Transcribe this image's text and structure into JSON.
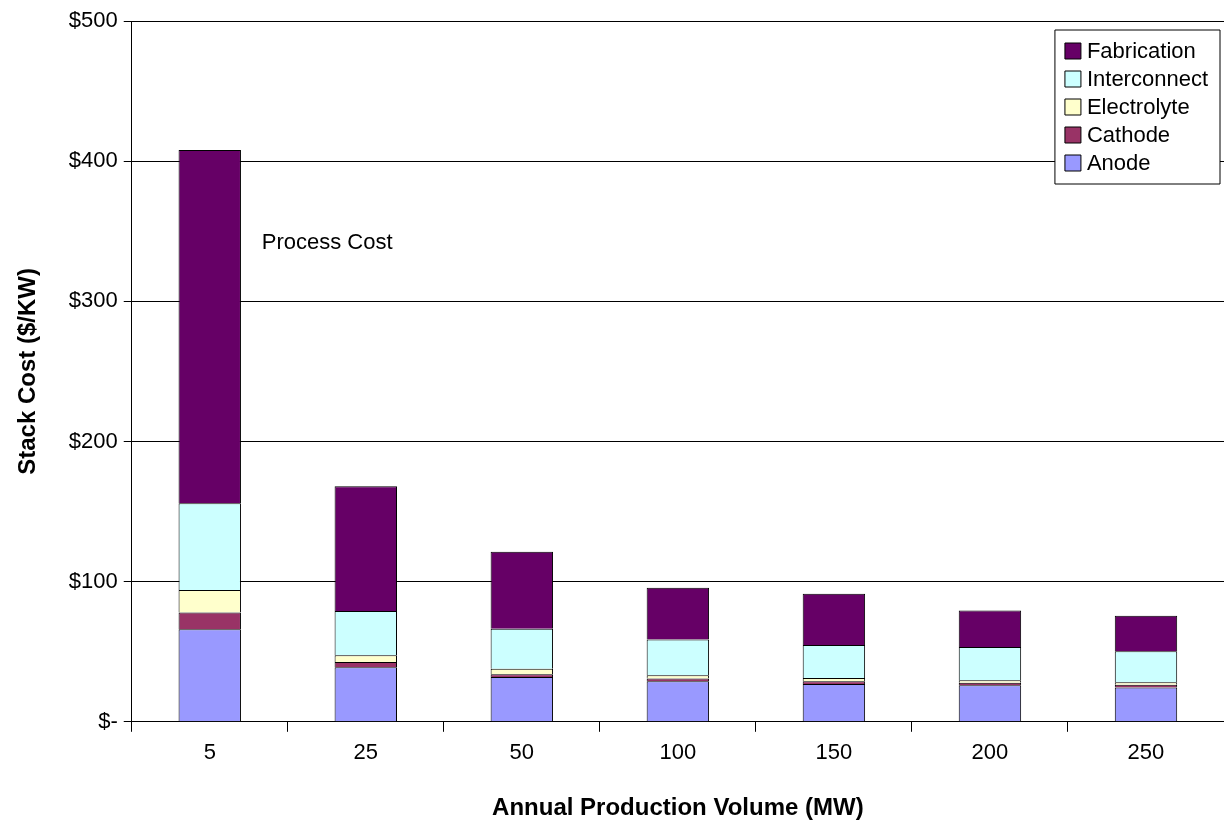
{
  "chart_data": {
    "type": "bar",
    "stacked": true,
    "xlabel": "Annual Production Volume (MW)",
    "ylabel": "Stack Cost ($/KW)",
    "categories": [
      "5",
      "25",
      "50",
      "100",
      "150",
      "200",
      "250"
    ],
    "series": [
      {
        "name": "Anode",
        "color": "#9999ff",
        "values": [
          66,
          39,
          32,
          29,
          27,
          26,
          24.5
        ]
      },
      {
        "name": "Cathode",
        "color": "#993366",
        "values": [
          12,
          3.6,
          2,
          1.9,
          2,
          1.9,
          1.9
        ]
      },
      {
        "name": "Electrolyte",
        "color": "#ffffcc",
        "values": [
          16,
          4.8,
          3.8,
          2.4,
          2.2,
          1.8,
          1.9
        ]
      },
      {
        "name": "Interconnect",
        "color": "#ccffff",
        "values": [
          62,
          31.6,
          28.5,
          25.5,
          23.6,
          23.7,
          22
        ]
      },
      {
        "name": "Fabrication",
        "color": "#660066",
        "values": [
          252,
          89,
          55,
          36.8,
          36.5,
          26,
          25.3
        ]
      }
    ],
    "ylim": [
      0,
      500
    ],
    "yticks": [
      {
        "value": 0,
        "label": "$-"
      },
      {
        "value": 100,
        "label": "$100"
      },
      {
        "value": 200,
        "label": "$200"
      },
      {
        "value": 300,
        "label": "$300"
      },
      {
        "value": 400,
        "label": "$400"
      },
      {
        "value": 500,
        "label": "$500"
      }
    ],
    "grid": "y",
    "legend": "top right",
    "annotations": [
      "Process Cost"
    ]
  }
}
